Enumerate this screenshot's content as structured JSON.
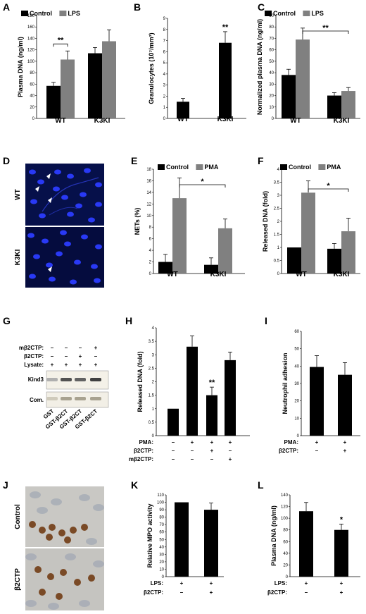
{
  "labels": {
    "a": "A",
    "b": "B",
    "c": "C",
    "d": "D",
    "e": "E",
    "f": "F",
    "g": "G",
    "h": "H",
    "i": "I",
    "j": "J",
    "k": "K",
    "l": "L"
  },
  "micrographs": {
    "d": {
      "top": "WT",
      "bottom": "K3KI"
    },
    "j": {
      "top": "Control",
      "bottom": "β2CTP"
    }
  },
  "blot": {
    "rows": [
      {
        "label": "mβ2CTP:",
        "signs": [
          "–",
          "–",
          "–",
          "+"
        ]
      },
      {
        "label": "β2CTP:",
        "signs": [
          "–",
          "–",
          "+",
          "–"
        ]
      },
      {
        "label": "Lysate:",
        "signs": [
          "+",
          "+",
          "+",
          "+"
        ]
      }
    ],
    "band_labels": [
      "Kind3",
      "Com."
    ],
    "lanes": [
      "GST",
      "GST-β2CT",
      "GST-β2CT",
      "GST-β2CT"
    ],
    "kind3_intensity": [
      0.15,
      0.7,
      0.6,
      0.8
    ]
  },
  "colors": {
    "dark": "#000000",
    "gray": "#808080"
  },
  "chart_data": [
    {
      "id": "A",
      "type": "bar",
      "categories": [
        "WT",
        "K3KI"
      ],
      "series": [
        {
          "name": "Control",
          "values": [
            57,
            114
          ],
          "errors": [
            6,
            10
          ],
          "color": "#000000"
        },
        {
          "name": "LPS",
          "values": [
            103,
            135
          ],
          "errors": [
            15,
            20
          ],
          "color": "#808080"
        }
      ],
      "ylabel": "Plasma DNA (ng/ml)",
      "ylim": [
        0,
        180
      ],
      "yticks": [
        "0",
        "20",
        "40",
        "60",
        "80",
        "100",
        "120",
        "140",
        "160",
        "180"
      ],
      "annotations": [
        "**"
      ]
    },
    {
      "id": "B",
      "type": "bar",
      "categories": [
        "WT",
        "K3KI"
      ],
      "series": [
        {
          "values": [
            1.5,
            6.8
          ],
          "errors": [
            0.3,
            1.0
          ],
          "color": "#000000"
        }
      ],
      "ylabel": "Granulocytes (10⁷/mm³)",
      "ylim": [
        0,
        9
      ],
      "yticks": [
        "0",
        "1",
        "2",
        "3",
        "4",
        "5",
        "6",
        "7",
        "8",
        "9"
      ],
      "annotations": [
        "**"
      ]
    },
    {
      "id": "C",
      "type": "bar",
      "categories": [
        "WT",
        "K3KI"
      ],
      "series": [
        {
          "name": "Control",
          "values": [
            38,
            20
          ],
          "errors": [
            5,
            2.5
          ],
          "color": "#000000"
        },
        {
          "name": "LPS",
          "values": [
            69,
            24
          ],
          "errors": [
            10,
            3
          ],
          "color": "#808080"
        }
      ],
      "ylabel": "Normalized plasma DNA (ng/ml)",
      "ylim": [
        0,
        90
      ],
      "yticks": [
        "0",
        "10",
        "20",
        "30",
        "40",
        "50",
        "60",
        "70",
        "80",
        "90"
      ],
      "annotations": [
        "**"
      ]
    },
    {
      "id": "E",
      "type": "bar",
      "categories": [
        "WT",
        "K3KI"
      ],
      "series": [
        {
          "name": "Control",
          "values": [
            2,
            1.5
          ],
          "errors": [
            1.3,
            1.2
          ],
          "color": "#000000"
        },
        {
          "name": "PMA",
          "values": [
            13,
            7.8
          ],
          "errors": [
            3.5,
            1.6
          ],
          "color": "#808080"
        }
      ],
      "ylabel": "NETs (%)",
      "ylim": [
        0,
        18
      ],
      "yticks": [
        "0",
        "2",
        "4",
        "6",
        "8",
        "10",
        "12",
        "14",
        "16",
        "18"
      ],
      "annotations": [
        "*"
      ]
    },
    {
      "id": "F",
      "type": "bar",
      "categories": [
        "WT",
        "K3KI"
      ],
      "series": [
        {
          "name": "Control",
          "values": [
            1.0,
            0.95
          ],
          "errors": [
            0,
            0.2
          ],
          "color": "#000000"
        },
        {
          "name": "PMA",
          "values": [
            3.1,
            1.62
          ],
          "errors": [
            0.45,
            0.5
          ],
          "color": "#808080"
        }
      ],
      "ylabel": "Released DNA (fold)",
      "ylim": [
        0,
        4
      ],
      "yticks": [
        "0",
        "0.5",
        "1",
        "1.5",
        "2",
        "2.5",
        "3",
        "3.5",
        "4"
      ],
      "annotations": [
        "*"
      ]
    },
    {
      "id": "H",
      "type": "bar",
      "categories": [
        "1",
        "2",
        "3",
        "4"
      ],
      "series": [
        {
          "values": [
            1.0,
            3.3,
            1.5,
            2.8
          ],
          "errors": [
            0,
            0.4,
            0.3,
            0.3
          ],
          "color": "#000000"
        }
      ],
      "ylabel": "Released DNA (fold)",
      "ylim": [
        0,
        4
      ],
      "yticks": [
        "0",
        "0.5",
        "1",
        "1.5",
        "2",
        "2.5",
        "3",
        "3.5",
        "4"
      ],
      "annotations": [
        "**"
      ],
      "conditions": [
        {
          "label": "PMA:",
          "signs": [
            "–",
            "+",
            "+",
            "+"
          ]
        },
        {
          "label": "β2CTP:",
          "signs": [
            "–",
            "–",
            "+",
            "–"
          ]
        },
        {
          "label": "mβ2CTP:",
          "signs": [
            "–",
            "–",
            "–",
            "+"
          ]
        }
      ]
    },
    {
      "id": "I",
      "type": "bar",
      "categories": [
        "1",
        "2"
      ],
      "series": [
        {
          "values": [
            39.5,
            35
          ],
          "errors": [
            6.5,
            7
          ],
          "color": "#000000"
        }
      ],
      "ylabel": "Neutrophil adhesion",
      "ylim": [
        0,
        60
      ],
      "yticks": [
        "0",
        "10",
        "20",
        "30",
        "40",
        "50",
        "60"
      ],
      "conditions": [
        {
          "label": "PMA:",
          "signs": [
            "+",
            "+"
          ]
        },
        {
          "label": "β2CTP:",
          "signs": [
            "–",
            "+"
          ]
        }
      ]
    },
    {
      "id": "K",
      "type": "bar",
      "categories": [
        "1",
        "2"
      ],
      "series": [
        {
          "values": [
            100,
            90
          ],
          "errors": [
            0,
            9
          ],
          "color": "#000000"
        }
      ],
      "ylabel": "Relative MPO activity",
      "ylim": [
        0,
        110
      ],
      "yticks": [
        "0",
        "10",
        "20",
        "30",
        "40",
        "50",
        "60",
        "70",
        "80",
        "90",
        "100",
        "110"
      ],
      "conditions": [
        {
          "label": "LPS:",
          "signs": [
            "+",
            "+"
          ]
        },
        {
          "label": "β2CTP:",
          "signs": [
            "–",
            "+"
          ]
        }
      ]
    },
    {
      "id": "L",
      "type": "bar",
      "categories": [
        "1",
        "2"
      ],
      "series": [
        {
          "values": [
            112,
            80
          ],
          "errors": [
            15,
            10
          ],
          "color": "#000000"
        }
      ],
      "ylabel": "Plasma DNA (ng/ml)",
      "ylim": [
        0,
        140
      ],
      "yticks": [
        "0",
        "20",
        "40",
        "60",
        "80",
        "100",
        "120",
        "140"
      ],
      "annotations": [
        "*"
      ],
      "conditions": [
        {
          "label": "LPS:",
          "signs": [
            "+",
            "+"
          ]
        },
        {
          "label": "β2CTP:",
          "signs": [
            "–",
            "+"
          ]
        }
      ]
    }
  ]
}
